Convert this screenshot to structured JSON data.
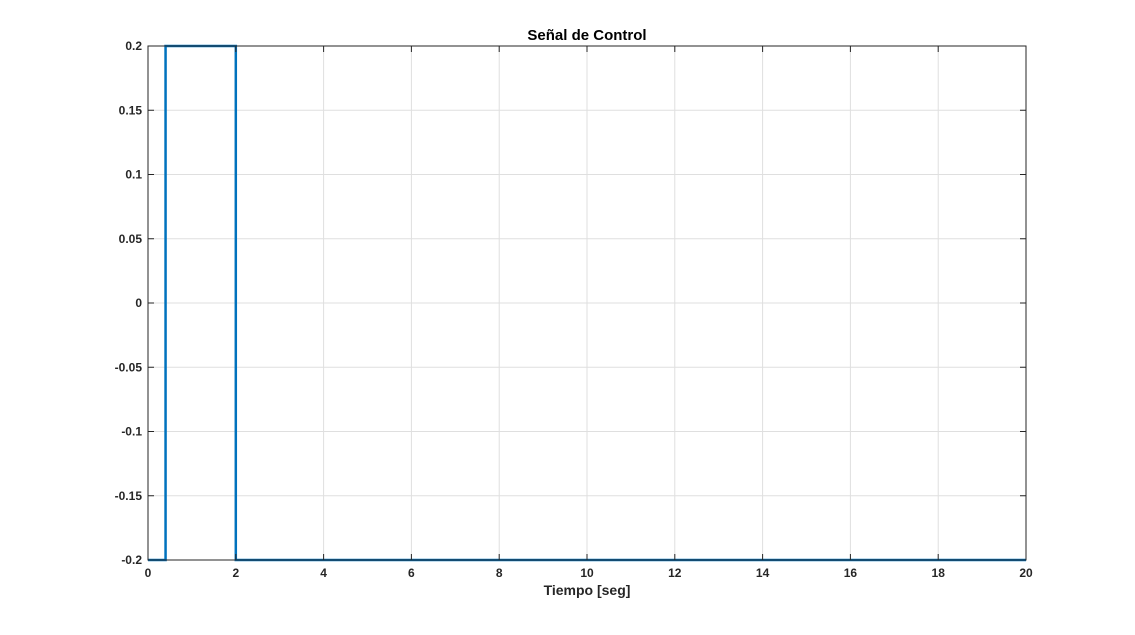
{
  "chart_data": {
    "type": "line",
    "title": "Señal de Control",
    "xlabel": "Tiempo [seg]",
    "ylabel": "",
    "xlim": [
      0,
      20
    ],
    "ylim": [
      -0.2,
      0.2
    ],
    "xticks": [
      0,
      2,
      4,
      6,
      8,
      10,
      12,
      14,
      16,
      18,
      20
    ],
    "yticks": [
      -0.2,
      -0.15,
      -0.1,
      -0.05,
      0,
      0.05,
      0.1,
      0.15,
      0.2
    ],
    "xtick_labels": [
      "0",
      "2",
      "4",
      "6",
      "8",
      "10",
      "12",
      "14",
      "16",
      "18",
      "20"
    ],
    "ytick_labels": [
      "-0.2",
      "-0.15",
      "-0.1",
      "-0.05",
      "0",
      "0.05",
      "0.1",
      "0.15",
      "0.2"
    ],
    "grid": true,
    "series": [
      {
        "color": "#0072BD",
        "step": true,
        "x": [
          0,
          0.4,
          0.4,
          2,
          2,
          20
        ],
        "y": [
          -0.2,
          -0.2,
          0.2,
          0.2,
          -0.2,
          -0.2
        ]
      }
    ]
  }
}
